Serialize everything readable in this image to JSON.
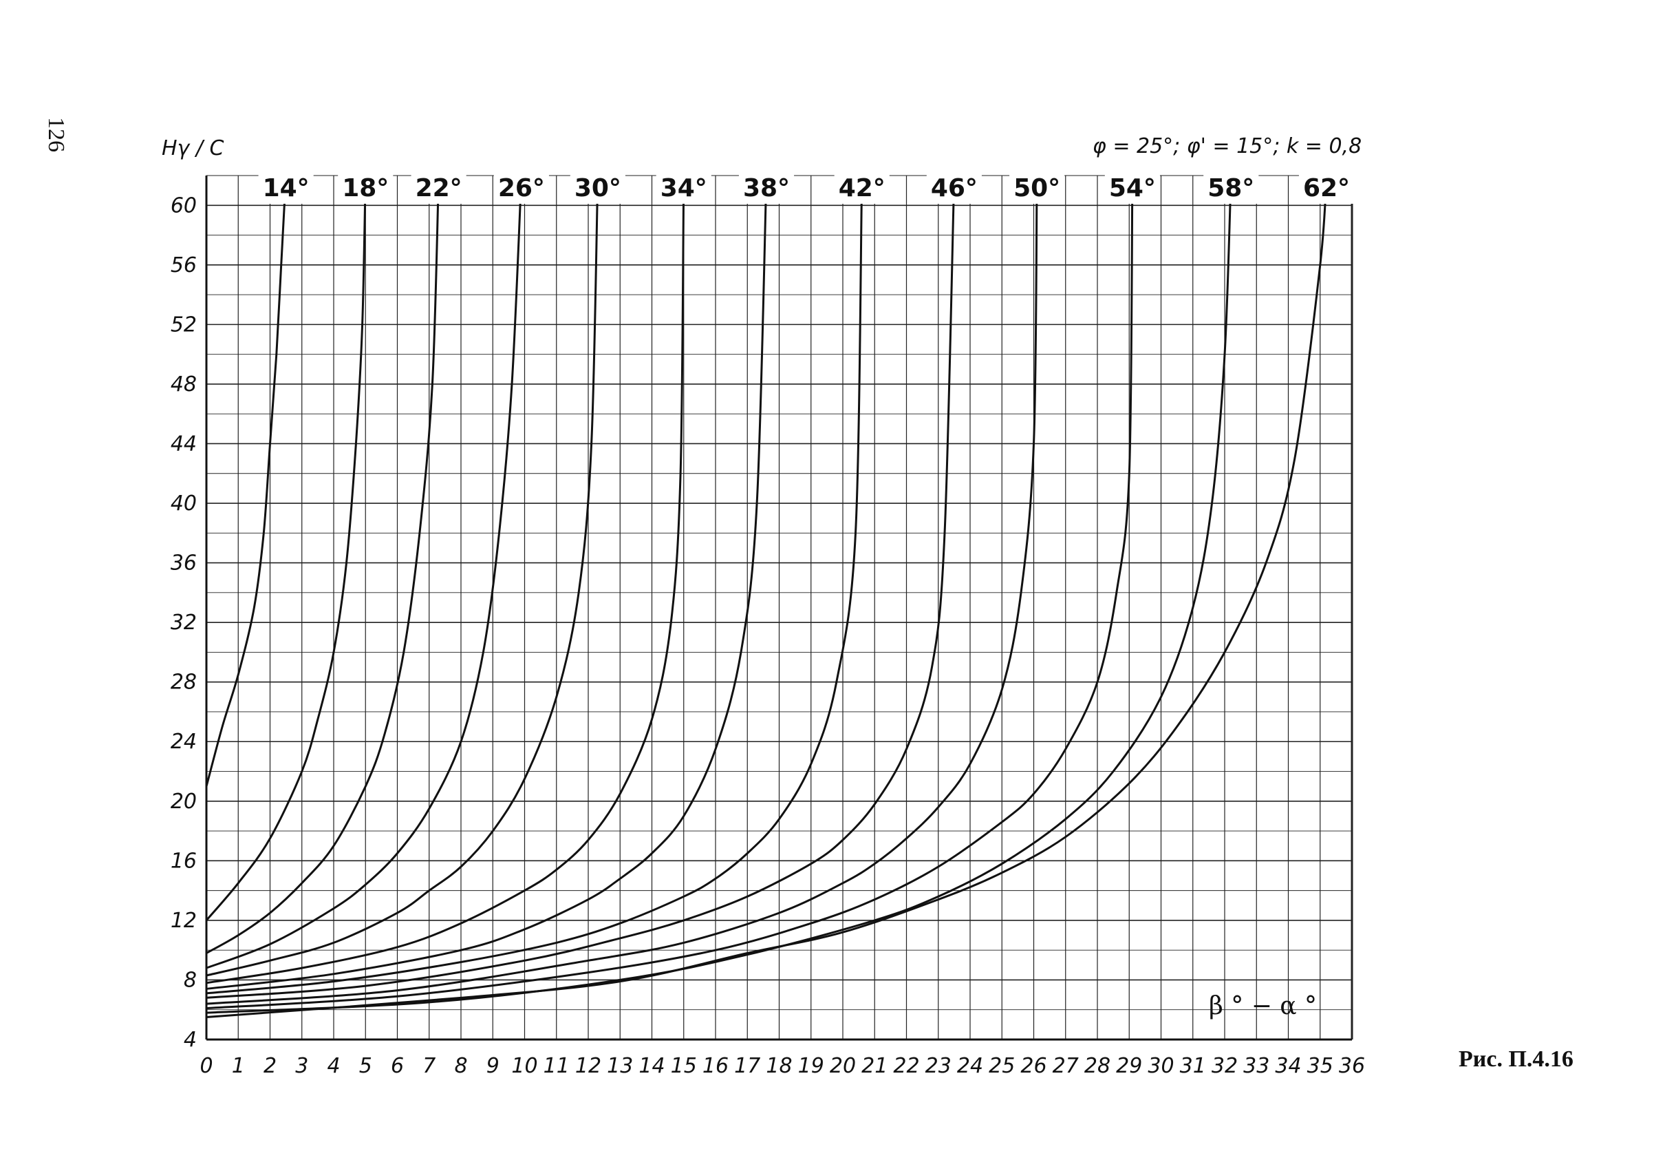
{
  "page_number": "126",
  "caption": "Рис. П.4.16",
  "chart_data": {
    "type": "line",
    "ylabel": "Hγ / C",
    "xlabel": "β ° − α °",
    "params": "φ = 25°; φ' = 15°; k = 0,8",
    "xlim": [
      0,
      36
    ],
    "ylim": [
      4,
      62
    ],
    "x_ticks": [
      "0",
      "1",
      "2",
      "3",
      "4",
      "5",
      "6",
      "7",
      "8",
      "9",
      "10",
      "11",
      "12",
      "13",
      "14",
      "15",
      "16",
      "17",
      "18",
      "19",
      "20",
      "21",
      "22",
      "23",
      "24",
      "25",
      "26",
      "27",
      "28",
      "29",
      "30",
      "31",
      "32",
      "33",
      "34",
      "35",
      "36"
    ],
    "y_ticks": [
      "4",
      "8",
      "12",
      "16",
      "20",
      "24",
      "28",
      "32",
      "36",
      "40",
      "44",
      "48",
      "52",
      "56",
      "60"
    ],
    "grid": true,
    "series": [
      {
        "name": "14°",
        "points": [
          [
            0,
            21
          ],
          [
            0.5,
            25
          ],
          [
            1,
            28.5
          ],
          [
            1.5,
            33
          ],
          [
            1.8,
            38
          ],
          [
            2,
            44
          ],
          [
            2.2,
            50
          ],
          [
            2.35,
            56
          ],
          [
            2.5,
            62
          ]
        ]
      },
      {
        "name": "18°",
        "points": [
          [
            0,
            12
          ],
          [
            1,
            14.5
          ],
          [
            2,
            17.5
          ],
          [
            3,
            22
          ],
          [
            3.5,
            25.5
          ],
          [
            4,
            30
          ],
          [
            4.4,
            36
          ],
          [
            4.7,
            44
          ],
          [
            4.9,
            52
          ],
          [
            5,
            62
          ]
        ]
      },
      {
        "name": "22°",
        "points": [
          [
            0,
            9.8
          ],
          [
            1,
            11
          ],
          [
            2,
            12.5
          ],
          [
            3,
            14.5
          ],
          [
            4,
            17
          ],
          [
            5,
            21
          ],
          [
            5.6,
            24.5
          ],
          [
            6.2,
            30
          ],
          [
            6.7,
            38
          ],
          [
            7.1,
            48
          ],
          [
            7.3,
            62
          ]
        ]
      },
      {
        "name": "26°",
        "points": [
          [
            0,
            8.8
          ],
          [
            2,
            10.4
          ],
          [
            4,
            12.8
          ],
          [
            5,
            14.4
          ],
          [
            6,
            16.5
          ],
          [
            7,
            19.5
          ],
          [
            8,
            24
          ],
          [
            8.7,
            30
          ],
          [
            9.2,
            38
          ],
          [
            9.6,
            48
          ],
          [
            9.9,
            62
          ]
        ]
      },
      {
        "name": "30°",
        "points": [
          [
            0,
            8.3
          ],
          [
            2,
            9.3
          ],
          [
            4,
            10.5
          ],
          [
            6,
            12.5
          ],
          [
            7,
            14
          ],
          [
            8,
            15.6
          ],
          [
            9,
            18
          ],
          [
            10,
            21.5
          ],
          [
            11,
            27
          ],
          [
            11.7,
            34
          ],
          [
            12.1,
            44
          ],
          [
            12.3,
            62
          ]
        ]
      },
      {
        "name": "34°",
        "points": [
          [
            0,
            7.8
          ],
          [
            3,
            8.8
          ],
          [
            6,
            10.2
          ],
          [
            8,
            11.8
          ],
          [
            10,
            14
          ],
          [
            11,
            15.4
          ],
          [
            12,
            17.4
          ],
          [
            13,
            20.5
          ],
          [
            14,
            25.5
          ],
          [
            14.6,
            32
          ],
          [
            14.9,
            42
          ],
          [
            15,
            62
          ]
        ]
      },
      {
        "name": "38°",
        "points": [
          [
            0,
            7.4
          ],
          [
            4,
            8.4
          ],
          [
            8,
            10
          ],
          [
            10,
            11.4
          ],
          [
            12,
            13.4
          ],
          [
            13,
            14.8
          ],
          [
            14,
            16.5
          ],
          [
            15,
            19
          ],
          [
            16,
            23.5
          ],
          [
            16.8,
            30
          ],
          [
            17.3,
            40
          ],
          [
            17.6,
            62
          ]
        ]
      },
      {
        "name": "42°",
        "points": [
          [
            0,
            7.1
          ],
          [
            4,
            7.9
          ],
          [
            8,
            9.2
          ],
          [
            11,
            10.5
          ],
          [
            13,
            11.8
          ],
          [
            15,
            13.6
          ],
          [
            16,
            14.8
          ],
          [
            17,
            16.5
          ],
          [
            18,
            18.8
          ],
          [
            19,
            22.5
          ],
          [
            19.8,
            28
          ],
          [
            20.4,
            38
          ],
          [
            20.6,
            62
          ]
        ]
      },
      {
        "name": "46°",
        "points": [
          [
            0,
            6.8
          ],
          [
            5,
            7.6
          ],
          [
            10,
            9.3
          ],
          [
            13,
            10.8
          ],
          [
            15,
            12
          ],
          [
            17,
            13.6
          ],
          [
            19,
            15.8
          ],
          [
            20,
            17.4
          ],
          [
            21,
            19.8
          ],
          [
            22,
            23.5
          ],
          [
            22.8,
            29
          ],
          [
            23.2,
            38
          ],
          [
            23.5,
            62
          ]
        ]
      },
      {
        "name": "50°",
        "points": [
          [
            0,
            6.4
          ],
          [
            6,
            7.3
          ],
          [
            12,
            9.3
          ],
          [
            15,
            10.5
          ],
          [
            18,
            12.5
          ],
          [
            20,
            14.5
          ],
          [
            21,
            15.8
          ],
          [
            22,
            17.5
          ],
          [
            23,
            19.6
          ],
          [
            24,
            22.5
          ],
          [
            25,
            27.5
          ],
          [
            25.6,
            34
          ],
          [
            26.0,
            44
          ],
          [
            26.1,
            62
          ]
        ]
      },
      {
        "name": "54°",
        "points": [
          [
            0,
            6.1
          ],
          [
            6,
            6.9
          ],
          [
            12,
            8.5
          ],
          [
            16,
            10
          ],
          [
            19,
            11.8
          ],
          [
            21,
            13.4
          ],
          [
            23,
            15.6
          ],
          [
            25,
            18.6
          ],
          [
            26,
            20.5
          ],
          [
            27,
            23.5
          ],
          [
            28,
            28
          ],
          [
            28.6,
            34
          ],
          [
            29,
            42
          ],
          [
            29.1,
            62
          ]
        ]
      },
      {
        "name": "58°",
        "points": [
          [
            0,
            5.8
          ],
          [
            7,
            6.5
          ],
          [
            13,
            8
          ],
          [
            17,
            9.7
          ],
          [
            21,
            12
          ],
          [
            23,
            13.6
          ],
          [
            25,
            15.8
          ],
          [
            27,
            18.8
          ],
          [
            28.5,
            22
          ],
          [
            30,
            27
          ],
          [
            31,
            33
          ],
          [
            31.6,
            40
          ],
          [
            32,
            50
          ],
          [
            32.2,
            62
          ]
        ]
      },
      {
        "name": "62°",
        "points": [
          [
            0,
            5.5
          ],
          [
            8,
            6.8
          ],
          [
            13,
            7.9
          ],
          [
            17,
            9.8
          ],
          [
            20,
            11.2
          ],
          [
            23,
            13.4
          ],
          [
            25,
            15.2
          ],
          [
            27,
            17.6
          ],
          [
            29,
            21.2
          ],
          [
            30.5,
            25
          ],
          [
            32,
            30
          ],
          [
            33.3,
            36
          ],
          [
            34.2,
            43
          ],
          [
            35,
            56
          ],
          [
            35.2,
            62
          ]
        ]
      }
    ]
  }
}
